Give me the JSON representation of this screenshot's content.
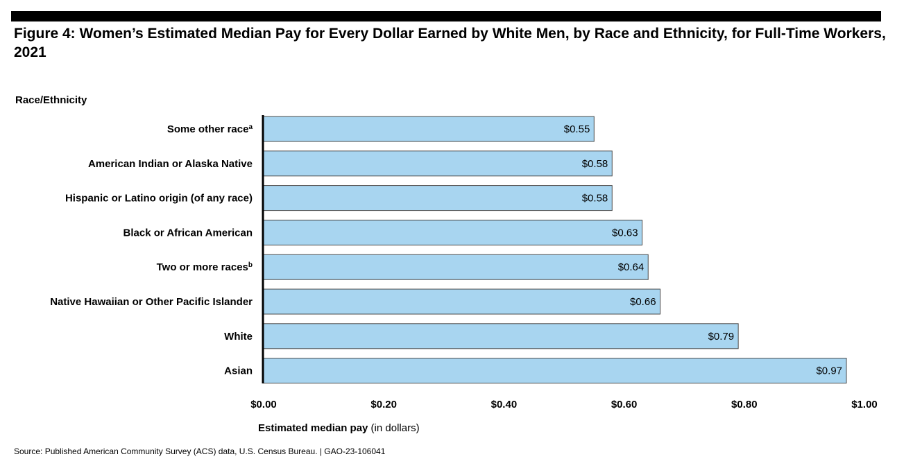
{
  "header": {
    "title": "Figure 4: Women’s Estimated Median Pay for Every Dollar Earned by White Men, by Race and Ethnicity, for Full-Time Workers, 2021",
    "category_header": "Race/Ethnicity"
  },
  "chart_data": {
    "type": "bar",
    "orientation": "horizontal",
    "categories": [
      {
        "label": "Some other race",
        "note": "a"
      },
      {
        "label": "American Indian or Alaska Native",
        "note": ""
      },
      {
        "label": "Hispanic or Latino origin (of any race)",
        "note": ""
      },
      {
        "label": "Black or African American",
        "note": ""
      },
      {
        "label": "Two or more races",
        "note": "b"
      },
      {
        "label": "Native Hawaiian or Other Pacific Islander",
        "note": ""
      },
      {
        "label": "White",
        "note": ""
      },
      {
        "label": "Asian",
        "note": ""
      }
    ],
    "values": [
      0.55,
      0.58,
      0.58,
      0.63,
      0.64,
      0.66,
      0.79,
      0.97
    ],
    "value_labels": [
      "$0.55",
      "$0.58",
      "$0.58",
      "$0.63",
      "$0.64",
      "$0.66",
      "$0.79",
      "$0.97"
    ],
    "xlim": [
      0,
      1.0
    ],
    "xticks": [
      0,
      0.2,
      0.4,
      0.6,
      0.8,
      1.0
    ],
    "xtick_labels": [
      "$0.00",
      "$0.20",
      "$0.40",
      "$0.60",
      "$0.80",
      "$1.00"
    ],
    "xlabel_bold": "Estimated median pay",
    "xlabel_rest": " (in dollars)",
    "bar_color": "#a8d5f0",
    "grid": false
  },
  "footer": {
    "source": "Source: Published American Community Survey (ACS) data, U.S. Census Bureau.  |  GAO-23-106041"
  }
}
